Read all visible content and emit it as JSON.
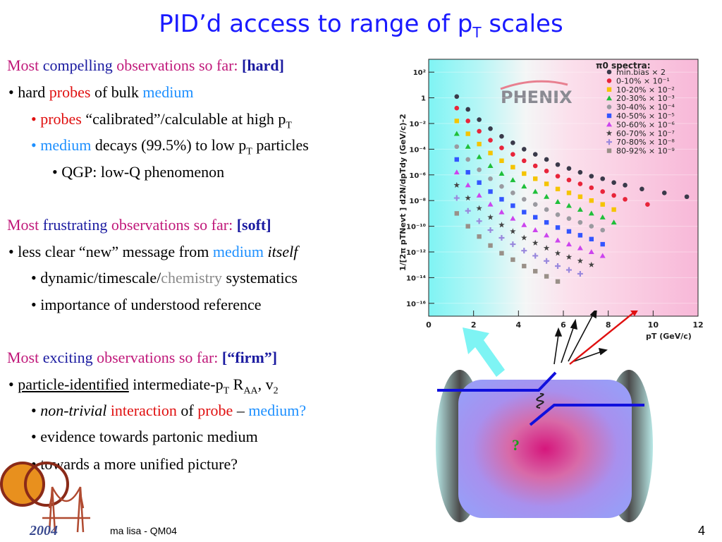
{
  "slide": {
    "title_main": "PID’d access to range of p",
    "title_sub": "T",
    "title_end": " scales",
    "page_number": "4",
    "footer": "ma lisa - QM04",
    "logo_year": "2004"
  },
  "hard": {
    "head_a": "Most ",
    "head_b": "compelling ",
    "head_c": "observations so far: ",
    "head_tag": "[hard]",
    "l1_a": "• hard ",
    "l1_b": "probes",
    "l1_c": " of bulk ",
    "l1_d": "medium",
    "l2_a": "• ",
    "l2_b": "probes",
    "l2_c": " “calibrated”/calculable at high p",
    "l2_sub": "T",
    "l3_a": "• ",
    "l3_b": "medium",
    "l3_c": " decays (99.5%) to low p",
    "l3_sub": "T",
    "l3_d": " particles",
    "l4": "• QGP: low-Q phenomenon"
  },
  "soft": {
    "head_a": "Most ",
    "head_b": "frustrating ",
    "head_c": "observations so far: ",
    "head_tag": "[soft]",
    "l1_a": "• less clear “new” message from ",
    "l1_b": "medium",
    "l1_c": " itself",
    "l2_a": "• dynamic/timescale/",
    "l2_b": "chemistry",
    "l2_c": " systematics",
    "l3": "• importance of understood reference"
  },
  "firm": {
    "head_a": "Most ",
    "head_b": "exciting ",
    "head_c": "observations so far: ",
    "head_tag": "[“firm”]",
    "l1_a": "• ",
    "l1_b": "particle-identified",
    "l1_c": " intermediate-p",
    "l1_sub": "T",
    "l1_d": " R",
    "l1_sub2": "AA",
    "l1_e": ", v",
    "l1_sub3": "2",
    "l2_a": "• ",
    "l2_b": "non-trivial",
    "l2_c": " interaction",
    "l2_d": " of ",
    "l2_e": "probe",
    "l2_f": " – ",
    "l2_g": "medium?",
    "l3": "• evidence towards partonic medium",
    "l4": "• towards a more unified picture?"
  },
  "detector": {
    "question_mark": "?"
  },
  "chart_data": {
    "type": "scatter",
    "title": "π0 spectra:",
    "watermark": "PHENIX",
    "xlabel": "pT (GeV/c)",
    "ylabel": "1/[2π pTNevt ] d2N/dpTdy (GeV/c)-2",
    "log_y": true,
    "xlim": [
      0,
      12
    ],
    "ylim_exp": [
      -17,
      3
    ],
    "x_ticks": [
      "0",
      "2",
      "4",
      "6",
      "8",
      "10",
      "12"
    ],
    "y_ticks": [
      {
        "e": 2,
        "label": "10²"
      },
      {
        "e": 0,
        "label": "1"
      },
      {
        "e": -2,
        "label": "10⁻²"
      },
      {
        "e": -4,
        "label": "10⁻⁴"
      },
      {
        "e": -6,
        "label": "10⁻⁶"
      },
      {
        "e": -8,
        "label": "10⁻⁸"
      },
      {
        "e": -10,
        "label": "10⁻¹⁰"
      },
      {
        "e": -12,
        "label": "10⁻¹²"
      },
      {
        "e": -14,
        "label": "10⁻¹⁴"
      },
      {
        "e": -16,
        "label": "10⁻¹⁶"
      }
    ],
    "series": [
      {
        "name": "min.bias × 2",
        "color": "#3a3a4a",
        "marker": "circle",
        "x": [
          1.25,
          1.75,
          2.25,
          2.75,
          3.25,
          3.75,
          4.25,
          4.75,
          5.25,
          5.75,
          6.25,
          6.75,
          7.25,
          7.75,
          8.25,
          8.75,
          9.5,
          10.5,
          11.5
        ],
        "y_exp": [
          0.1,
          -0.9,
          -1.7,
          -2.4,
          -3.0,
          -3.5,
          -4.0,
          -4.4,
          -4.8,
          -5.2,
          -5.5,
          -5.8,
          -6.1,
          -6.3,
          -6.6,
          -6.8,
          -7.1,
          -7.4,
          -7.7
        ]
      },
      {
        "name": "0-10% × 10⁻¹",
        "color": "#e8253a",
        "marker": "circle",
        "x": [
          1.25,
          1.75,
          2.25,
          2.75,
          3.25,
          3.75,
          4.25,
          4.75,
          5.25,
          5.75,
          6.25,
          6.75,
          7.25,
          7.75,
          8.25,
          8.75,
          9.75
        ],
        "y_exp": [
          -0.8,
          -1.8,
          -2.6,
          -3.3,
          -3.9,
          -4.4,
          -4.9,
          -5.3,
          -5.7,
          -6.1,
          -6.4,
          -6.7,
          -7.0,
          -7.3,
          -7.6,
          -7.9,
          -8.3
        ]
      },
      {
        "name": "10-20% × 10⁻²",
        "color": "#f5c400",
        "marker": "square",
        "x": [
          1.25,
          1.75,
          2.25,
          2.75,
          3.25,
          3.75,
          4.25,
          4.75,
          5.25,
          5.75,
          6.25,
          6.75,
          7.25,
          7.75,
          8.25
        ],
        "y_exp": [
          -1.8,
          -2.8,
          -3.6,
          -4.3,
          -4.9,
          -5.4,
          -5.9,
          -6.3,
          -6.7,
          -7.1,
          -7.4,
          -7.7,
          -8.0,
          -8.3,
          -8.7
        ]
      },
      {
        "name": "20-30% × 10⁻³",
        "color": "#1fbf3a",
        "marker": "triangle",
        "x": [
          1.25,
          1.75,
          2.25,
          2.75,
          3.25,
          3.75,
          4.25,
          4.75,
          5.25,
          5.75,
          6.25,
          6.75,
          7.25,
          7.75,
          8.25
        ],
        "y_exp": [
          -2.8,
          -3.8,
          -4.6,
          -5.3,
          -5.9,
          -6.4,
          -6.9,
          -7.3,
          -7.7,
          -8.1,
          -8.4,
          -8.7,
          -9.0,
          -9.3,
          -9.7
        ]
      },
      {
        "name": "30-40% × 10⁻⁴",
        "color": "#9a9aa0",
        "marker": "circle",
        "x": [
          1.25,
          1.75,
          2.25,
          2.75,
          3.25,
          3.75,
          4.25,
          4.75,
          5.25,
          5.75,
          6.25,
          6.75,
          7.25,
          7.75
        ],
        "y_exp": [
          -3.8,
          -4.8,
          -5.6,
          -6.3,
          -6.9,
          -7.4,
          -7.9,
          -8.3,
          -8.7,
          -9.1,
          -9.4,
          -9.7,
          -10.0,
          -10.3
        ]
      },
      {
        "name": "40-50% × 10⁻⁵",
        "color": "#3355ff",
        "marker": "square",
        "x": [
          1.25,
          1.75,
          2.25,
          2.75,
          3.25,
          3.75,
          4.25,
          4.75,
          5.25,
          5.75,
          6.25,
          6.75,
          7.25,
          7.75
        ],
        "y_exp": [
          -4.8,
          -5.8,
          -6.6,
          -7.3,
          -7.9,
          -8.4,
          -8.9,
          -9.3,
          -9.7,
          -10.1,
          -10.4,
          -10.7,
          -11.0,
          -11.4
        ]
      },
      {
        "name": "50-60% × 10⁻⁶",
        "color": "#cc44ee",
        "marker": "triangle",
        "x": [
          1.25,
          1.75,
          2.25,
          2.75,
          3.25,
          3.75,
          4.25,
          4.75,
          5.25,
          5.75,
          6.25,
          6.75,
          7.25,
          7.75
        ],
        "y_exp": [
          -5.8,
          -6.8,
          -7.6,
          -8.3,
          -8.9,
          -9.4,
          -9.9,
          -10.3,
          -10.7,
          -11.1,
          -11.4,
          -11.7,
          -12.0,
          -12.3
        ]
      },
      {
        "name": "60-70% × 10⁻⁷",
        "color": "#444444",
        "marker": "star",
        "x": [
          1.25,
          1.75,
          2.25,
          2.75,
          3.25,
          3.75,
          4.25,
          4.75,
          5.25,
          5.75,
          6.25,
          6.75,
          7.25
        ],
        "y_exp": [
          -6.8,
          -7.8,
          -8.6,
          -9.3,
          -9.9,
          -10.4,
          -10.9,
          -11.3,
          -11.7,
          -12.1,
          -12.4,
          -12.7,
          -13.0
        ]
      },
      {
        "name": "70-80% × 10⁻⁸",
        "color": "#9988dd",
        "marker": "cross",
        "x": [
          1.25,
          1.75,
          2.25,
          2.75,
          3.25,
          3.75,
          4.25,
          4.75,
          5.25,
          5.75,
          6.25,
          6.75
        ],
        "y_exp": [
          -7.8,
          -8.8,
          -9.6,
          -10.3,
          -10.9,
          -11.4,
          -11.9,
          -12.3,
          -12.7,
          -13.1,
          -13.4,
          -13.7
        ]
      },
      {
        "name": "80-92% × 10⁻⁹",
        "color": "#999088",
        "marker": "square",
        "x": [
          1.25,
          1.75,
          2.25,
          2.75,
          3.25,
          3.75,
          4.25,
          4.75,
          5.25,
          5.75
        ],
        "y_exp": [
          -9.0,
          -10.0,
          -10.8,
          -11.5,
          -12.1,
          -12.6,
          -13.1,
          -13.5,
          -13.9,
          -14.3
        ]
      }
    ]
  }
}
